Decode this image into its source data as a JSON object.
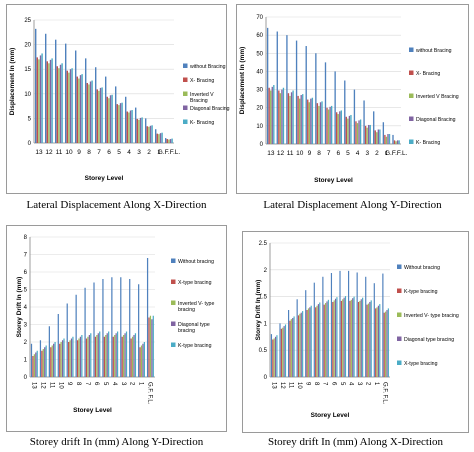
{
  "captions": [
    "Lateral Displacement Along X-Direction",
    "Lateral Displacement Along Y-Direction",
    "Storey drift In (mm) Along Y-Direction",
    "Storey drift In (mm) Along X-Direction"
  ],
  "colors": {
    "blue": "#4f81bd",
    "red": "#c0504d",
    "green": "#9bbb59",
    "purple": "#8064a2",
    "cyan": "#4bacc6"
  },
  "chart_data": [
    {
      "type": "bar",
      "ylabel": "Displacement In (mm)",
      "xlabel": "Storey Level",
      "ylim": [
        0,
        25
      ],
      "yticks": [
        0,
        5,
        10,
        15,
        20,
        25
      ],
      "categories": [
        "13",
        "12",
        "11",
        "10",
        "9",
        "8",
        "7",
        "6",
        "5",
        "4",
        "3",
        "2",
        "1",
        "G.F.F.L."
      ],
      "category_labels": [
        "13",
        "12",
        "11",
        "10",
        "9",
        "8",
        "7",
        "6",
        "5",
        "4",
        "3",
        "2",
        "1",
        "G.F.F.L."
      ],
      "grid": true,
      "legend": "right",
      "series": [
        {
          "name": "without Bracing",
          "color": "#4f81bd",
          "values": [
            23.2,
            22.2,
            21.0,
            20.2,
            18.8,
            17.2,
            15.4,
            13.5,
            11.5,
            9.4,
            7.2,
            5.0,
            2.8,
            1.0
          ]
        },
        {
          "name": "X- Bracing",
          "color": "#c0504d",
          "values": [
            17.4,
            16.6,
            15.6,
            14.7,
            13.5,
            12.2,
            10.9,
            9.4,
            7.9,
            6.4,
            4.9,
            3.4,
            1.9,
            0.8
          ]
        },
        {
          "name": "Inverted V Bracing",
          "color": "#9bbb59",
          "values": [
            17.0,
            16.2,
            15.2,
            14.3,
            13.1,
            11.9,
            10.6,
            9.1,
            7.7,
            6.2,
            4.7,
            3.3,
            1.8,
            0.7
          ]
        },
        {
          "name": "Diagonal Bracing",
          "color": "#8064a2",
          "values": [
            17.8,
            16.9,
            15.9,
            15.0,
            13.8,
            12.5,
            11.2,
            9.7,
            8.1,
            6.6,
            5.1,
            3.5,
            2.0,
            0.8
          ]
        },
        {
          "name": "K- Bracing",
          "color": "#4bacc6",
          "values": [
            18.2,
            17.2,
            16.2,
            15.2,
            14.0,
            12.7,
            11.3,
            9.8,
            8.2,
            6.7,
            5.2,
            3.6,
            2.1,
            0.9
          ]
        }
      ]
    },
    {
      "type": "bar",
      "ylabel": "Displacement In (mm)",
      "xlabel": "Storey Level",
      "ylim": [
        0,
        70
      ],
      "yticks": [
        0,
        10,
        20,
        30,
        40,
        50,
        60,
        70
      ],
      "categories": [
        "13",
        "12",
        "11",
        "10",
        "9",
        "8",
        "7",
        "6",
        "5",
        "4",
        "3",
        "2",
        "1",
        "G.F.F.L."
      ],
      "category_labels": [
        "13",
        "12",
        "11",
        "10",
        "9",
        "8",
        "7",
        "6",
        "5",
        "4",
        "3",
        "2",
        "1",
        "G.F.F.L."
      ],
      "grid": true,
      "legend": "right",
      "series": [
        {
          "name": "without Bracing",
          "color": "#4f81bd",
          "values": [
            64,
            62,
            60,
            57,
            54,
            50,
            45,
            40,
            35,
            30,
            24,
            18,
            12,
            5
          ]
        },
        {
          "name": "X- Bracing",
          "color": "#c0504d",
          "values": [
            31,
            29.5,
            28,
            26.5,
            24.5,
            22.5,
            20,
            17.5,
            15,
            12.5,
            10,
            7.5,
            5,
            2
          ]
        },
        {
          "name": "Inverted V Bracing",
          "color": "#9bbb59",
          "values": [
            29.5,
            28,
            26.5,
            25,
            23,
            21,
            19,
            16.5,
            14,
            11.5,
            9,
            6.5,
            4,
            1.5
          ]
        },
        {
          "name": "Diagonal Bracing",
          "color": "#8064a2",
          "values": [
            31.5,
            30,
            28.5,
            27,
            25,
            23,
            20.5,
            18,
            15.5,
            13,
            10.5,
            8,
            5.5,
            2
          ]
        },
        {
          "name": "K- Bracing",
          "color": "#4bacc6",
          "values": [
            32.5,
            31,
            29.5,
            27.5,
            25.5,
            23.5,
            21,
            18.5,
            16,
            13.5,
            10.5,
            8,
            5.5,
            2
          ]
        }
      ]
    },
    {
      "type": "bar",
      "ylabel": "Storey Drift In (mm)",
      "xlabel": "Storey Level",
      "ylim": [
        0,
        8
      ],
      "yticks": [
        0,
        1,
        2,
        3,
        4,
        5,
        6,
        7,
        8
      ],
      "categories": [
        "13",
        "12",
        "11",
        "10",
        "9",
        "8",
        "7",
        "6",
        "5",
        "4",
        "3",
        "2",
        "1",
        "G.F.F.L."
      ],
      "category_labels": [
        "13",
        "12",
        "11",
        "10",
        "9",
        "8",
        "7",
        "6",
        "5",
        "4",
        "3",
        "2",
        "1",
        "G.F.\nF.L."
      ],
      "grid": true,
      "legend": "right",
      "series": [
        {
          "name": "Without bracing",
          "color": "#4f81bd",
          "values": [
            1.9,
            2.1,
            2.9,
            3.6,
            4.2,
            4.7,
            5.1,
            5.4,
            5.6,
            5.7,
            5.7,
            5.6,
            5.3,
            6.8
          ]
        },
        {
          "name": "X-type bracing",
          "color": "#c0504d",
          "values": [
            1.2,
            1.5,
            1.7,
            1.9,
            2.0,
            2.1,
            2.2,
            2.3,
            2.3,
            2.3,
            2.3,
            2.2,
            1.7,
            3.4
          ]
        },
        {
          "name": "Inverted V- type bracing",
          "color": "#9bbb59",
          "values": [
            1.3,
            1.6,
            1.8,
            2.0,
            2.1,
            2.2,
            2.3,
            2.4,
            2.4,
            2.4,
            2.4,
            2.3,
            1.8,
            3.5
          ]
        },
        {
          "name": "Diagonal type bracing",
          "color": "#8064a2",
          "values": [
            1.4,
            1.7,
            1.9,
            2.1,
            2.2,
            2.3,
            2.4,
            2.5,
            2.5,
            2.5,
            2.5,
            2.4,
            1.9,
            3.3
          ]
        },
        {
          "name": "K-type bracing",
          "color": "#4bacc6",
          "values": [
            1.5,
            1.8,
            2.0,
            2.2,
            2.3,
            2.4,
            2.5,
            2.6,
            2.6,
            2.6,
            2.6,
            2.5,
            2.0,
            3.5
          ]
        }
      ]
    },
    {
      "type": "bar",
      "ylabel": "Storey Drift In (mm)",
      "xlabel": "Storey Level",
      "ylim": [
        0,
        2.5
      ],
      "yticks": [
        0,
        0.5,
        1,
        1.5,
        2,
        2.5
      ],
      "tick_labels": [
        "0",
        "0.5",
        "1",
        "1.5",
        "2",
        "2.5"
      ],
      "categories": [
        "13",
        "12",
        "11",
        "10",
        "9",
        "8",
        "7",
        "6",
        "5",
        "4",
        "3",
        "2",
        "1",
        "G.F.F.L."
      ],
      "category_labels": [
        "13",
        "12",
        "11",
        "10",
        "9",
        "8",
        "7",
        "6",
        "5",
        "4",
        "3",
        "2",
        "1",
        "G.F.\nF.L."
      ],
      "grid": true,
      "legend": "right",
      "series": [
        {
          "name": "Without bracing",
          "color": "#4f81bd",
          "values": [
            0.8,
            1.0,
            1.25,
            1.45,
            1.62,
            1.76,
            1.87,
            1.94,
            1.98,
            1.98,
            1.95,
            1.87,
            1.75,
            1.93
          ]
        },
        {
          "name": "K-type bracing",
          "color": "#c0504d",
          "values": [
            0.7,
            0.9,
            1.05,
            1.15,
            1.25,
            1.3,
            1.35,
            1.4,
            1.42,
            1.42,
            1.4,
            1.35,
            1.28,
            1.2
          ]
        },
        {
          "name": "Inverted V- type bracing",
          "color": "#9bbb59",
          "values": [
            0.72,
            0.92,
            1.08,
            1.18,
            1.28,
            1.33,
            1.38,
            1.43,
            1.45,
            1.44,
            1.42,
            1.37,
            1.3,
            1.22
          ]
        },
        {
          "name": "Diagonal type bracing",
          "color": "#8064a2",
          "values": [
            0.75,
            0.95,
            1.1,
            1.2,
            1.3,
            1.36,
            1.41,
            1.46,
            1.48,
            1.47,
            1.45,
            1.4,
            1.33,
            1.25
          ]
        },
        {
          "name": "X-type bracing",
          "color": "#4bacc6",
          "values": [
            0.78,
            0.98,
            1.13,
            1.23,
            1.33,
            1.39,
            1.44,
            1.49,
            1.51,
            1.5,
            1.48,
            1.43,
            1.36,
            1.28
          ]
        }
      ]
    }
  ]
}
